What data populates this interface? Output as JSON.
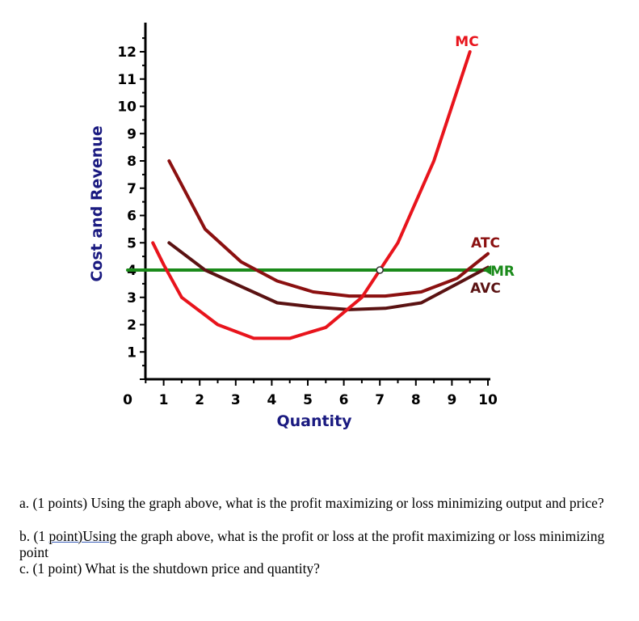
{
  "chart_data": {
    "type": "line",
    "ylabel": "Cost and Revenue",
    "xlabel": "Quantity",
    "xlim": [
      0,
      10
    ],
    "ylim": [
      0,
      12
    ],
    "x_ticks": [
      0,
      1,
      2,
      3,
      4,
      5,
      6,
      7,
      8,
      9,
      10
    ],
    "y_ticks": [
      1,
      2,
      3,
      4,
      5,
      6,
      7,
      8,
      9,
      10,
      11,
      12
    ],
    "grid": false,
    "series": [
      {
        "name": "MC",
        "color": "#e8141c",
        "points": [
          [
            0.7,
            5.0
          ],
          [
            1.0,
            4.2
          ],
          [
            1.5,
            3.0
          ],
          [
            2.5,
            2.0
          ],
          [
            3.5,
            1.5
          ],
          [
            4.5,
            1.5
          ],
          [
            5.5,
            1.9
          ],
          [
            6.5,
            3.0
          ],
          [
            7.0,
            4.0
          ],
          [
            7.5,
            5.0
          ],
          [
            8.5,
            8.0
          ],
          [
            9.5,
            12.0
          ]
        ]
      },
      {
        "name": "ATC",
        "color": "#8b1010",
        "points": [
          [
            1.15,
            8.0
          ],
          [
            2.15,
            5.5
          ],
          [
            3.15,
            4.3
          ],
          [
            4.15,
            3.6
          ],
          [
            5.15,
            3.2
          ],
          [
            6.15,
            3.05
          ],
          [
            7.15,
            3.05
          ],
          [
            8.15,
            3.2
          ],
          [
            9.15,
            3.7
          ],
          [
            10.0,
            4.6
          ]
        ]
      },
      {
        "name": "AVC",
        "color": "#5a1212",
        "points": [
          [
            1.15,
            5.0
          ],
          [
            2.15,
            4.0
          ],
          [
            3.15,
            3.4
          ],
          [
            4.15,
            2.8
          ],
          [
            5.15,
            2.65
          ],
          [
            6.15,
            2.55
          ],
          [
            7.15,
            2.6
          ],
          [
            8.15,
            2.8
          ],
          [
            9.15,
            3.5
          ],
          [
            10.0,
            4.1
          ]
        ]
      },
      {
        "name": "MR",
        "color": "#1a8a1a",
        "points": [
          [
            0,
            4.0
          ],
          [
            10.0,
            4.0
          ]
        ]
      }
    ],
    "annotations": [
      {
        "type": "point",
        "x": 7.0,
        "y": 4.0,
        "label": ""
      }
    ]
  },
  "questions": {
    "a": "a.  (1 points) Using the graph above, what is the profit maximizing or loss minimizing output and price?",
    "b_prefix": "b. (1 ",
    "b_link": "point)Using",
    "b_suffix": " the graph above, what is the profit or loss at the profit maximizing or loss minimizing point",
    "c": "c. (1 point) What is the shutdown price and quantity?"
  }
}
